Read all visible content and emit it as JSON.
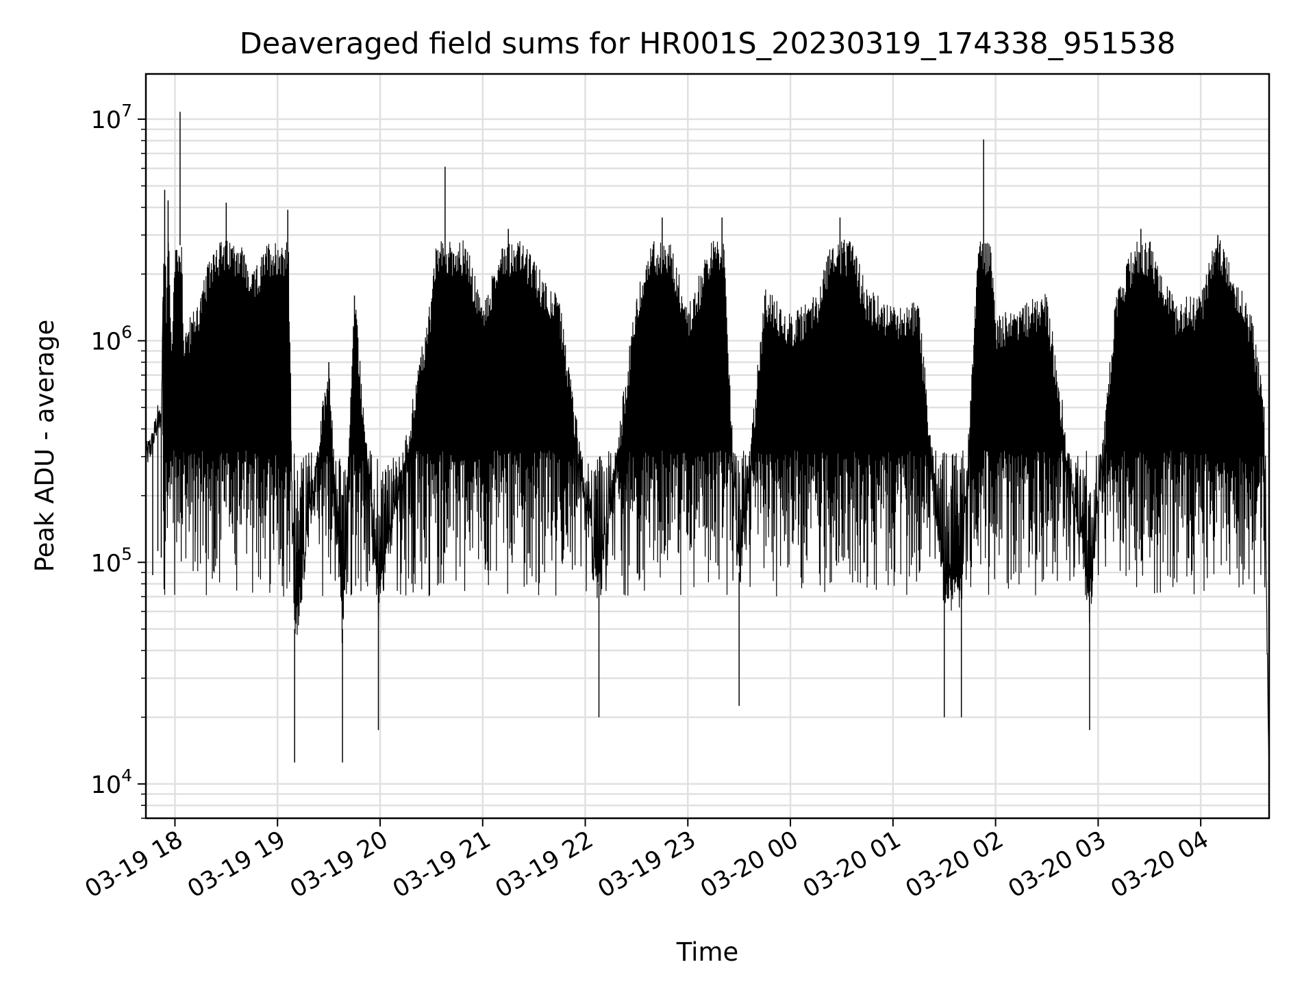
{
  "chart_data": {
    "type": "line",
    "title": "Deaveraged field sums for HR001S_20230319_174338_951538",
    "xlabel": "Time",
    "ylabel": "Peak ADU - average",
    "yscale": "log",
    "ylim": [
      7000,
      16000000
    ],
    "xlim": [
      "2023-03-19 17:43",
      "2023-03-20 04:40"
    ],
    "grid": true,
    "line_color": "#000000",
    "grid_color": "#e0e0e0",
    "x_ticks": [
      {
        "t": "2023-03-19 18:00",
        "label": "03-19 18"
      },
      {
        "t": "2023-03-19 19:00",
        "label": "03-19 19"
      },
      {
        "t": "2023-03-19 20:00",
        "label": "03-19 20"
      },
      {
        "t": "2023-03-19 21:00",
        "label": "03-19 21"
      },
      {
        "t": "2023-03-19 22:00",
        "label": "03-19 22"
      },
      {
        "t": "2023-03-19 23:00",
        "label": "03-19 23"
      },
      {
        "t": "2023-03-20 00:00",
        "label": "03-20 00"
      },
      {
        "t": "2023-03-20 01:00",
        "label": "03-20 01"
      },
      {
        "t": "2023-03-20 02:00",
        "label": "03-20 02"
      },
      {
        "t": "2023-03-20 03:00",
        "label": "03-20 03"
      },
      {
        "t": "2023-03-20 04:00",
        "label": "03-20 04"
      }
    ],
    "y_ticks": [
      {
        "value": 10000,
        "base": "10",
        "exp": "4"
      },
      {
        "value": 100000,
        "base": "10",
        "exp": "5"
      },
      {
        "value": 1000000,
        "base": "10",
        "exp": "6"
      },
      {
        "value": 10000000,
        "base": "10",
        "exp": "7"
      }
    ],
    "series": [
      {
        "values": [
          [
            "2023-03-19 17:43",
            300000
          ],
          [
            "2023-03-19 17:47",
            350000
          ],
          [
            "2023-03-19 17:50",
            450000
          ],
          [
            "2023-03-19 17:52",
            420000
          ],
          [
            "2023-03-19 17:53",
            1500000
          ],
          [
            "2023-03-19 17:54",
            4800000
          ],
          [
            "2023-03-19 17:55",
            1200000
          ],
          [
            "2023-03-19 17:56",
            4300000
          ],
          [
            "2023-03-19 17:58",
            900000
          ],
          [
            "2023-03-19 18:03",
            10800000
          ],
          [
            "2023-03-19 18:05",
            1000000
          ],
          [
            "2023-03-19 18:15",
            1500000
          ],
          [
            "2023-03-19 18:30",
            4200000
          ],
          [
            "2023-03-19 18:45",
            1800000
          ],
          [
            "2023-03-19 19:06",
            3900000
          ],
          [
            "2023-03-19 19:10",
            50000
          ],
          [
            "2023-03-19 19:30",
            800000
          ],
          [
            "2023-03-19 19:38",
            50000
          ],
          [
            "2023-03-19 19:45",
            1600000
          ],
          [
            "2023-03-19 19:59",
            70000
          ],
          [
            "2023-03-19 20:30",
            1500000
          ],
          [
            "2023-03-19 20:38",
            6100000
          ],
          [
            "2023-03-19 21:00",
            1300000
          ],
          [
            "2023-03-19 21:15",
            3200000
          ],
          [
            "2023-03-19 21:45",
            1400000
          ],
          [
            "2023-03-19 22:08",
            80000
          ],
          [
            "2023-03-19 22:30",
            1500000
          ],
          [
            "2023-03-19 22:45",
            3600000
          ],
          [
            "2023-03-19 23:00",
            1300000
          ],
          [
            "2023-03-19 23:20",
            3600000
          ],
          [
            "2023-03-19 23:30",
            90000
          ],
          [
            "2023-03-19 23:45",
            1600000
          ],
          [
            "2023-03-20 00:00",
            1200000
          ],
          [
            "2023-03-20 00:15",
            1500000
          ],
          [
            "2023-03-20 00:29",
            3600000
          ],
          [
            "2023-03-20 00:45",
            1600000
          ],
          [
            "2023-03-20 01:00",
            1300000
          ],
          [
            "2023-03-20 01:15",
            1400000
          ],
          [
            "2023-03-20 01:30",
            80000
          ],
          [
            "2023-03-20 01:40",
            80000
          ],
          [
            "2023-03-20 01:53",
            8100000
          ],
          [
            "2023-03-20 02:00",
            1200000
          ],
          [
            "2023-03-20 02:30",
            1500000
          ],
          [
            "2023-03-20 02:55",
            70000
          ],
          [
            "2023-03-20 03:10",
            1400000
          ],
          [
            "2023-03-20 03:25",
            3200000
          ],
          [
            "2023-03-20 03:45",
            1400000
          ],
          [
            "2023-03-20 04:00",
            1500000
          ],
          [
            "2023-03-20 04:10",
            3000000
          ],
          [
            "2023-03-20 04:30",
            1200000
          ],
          [
            "2023-03-20 04:37",
            500000
          ],
          [
            "2023-03-20 04:40",
            10000
          ]
        ]
      }
    ]
  }
}
